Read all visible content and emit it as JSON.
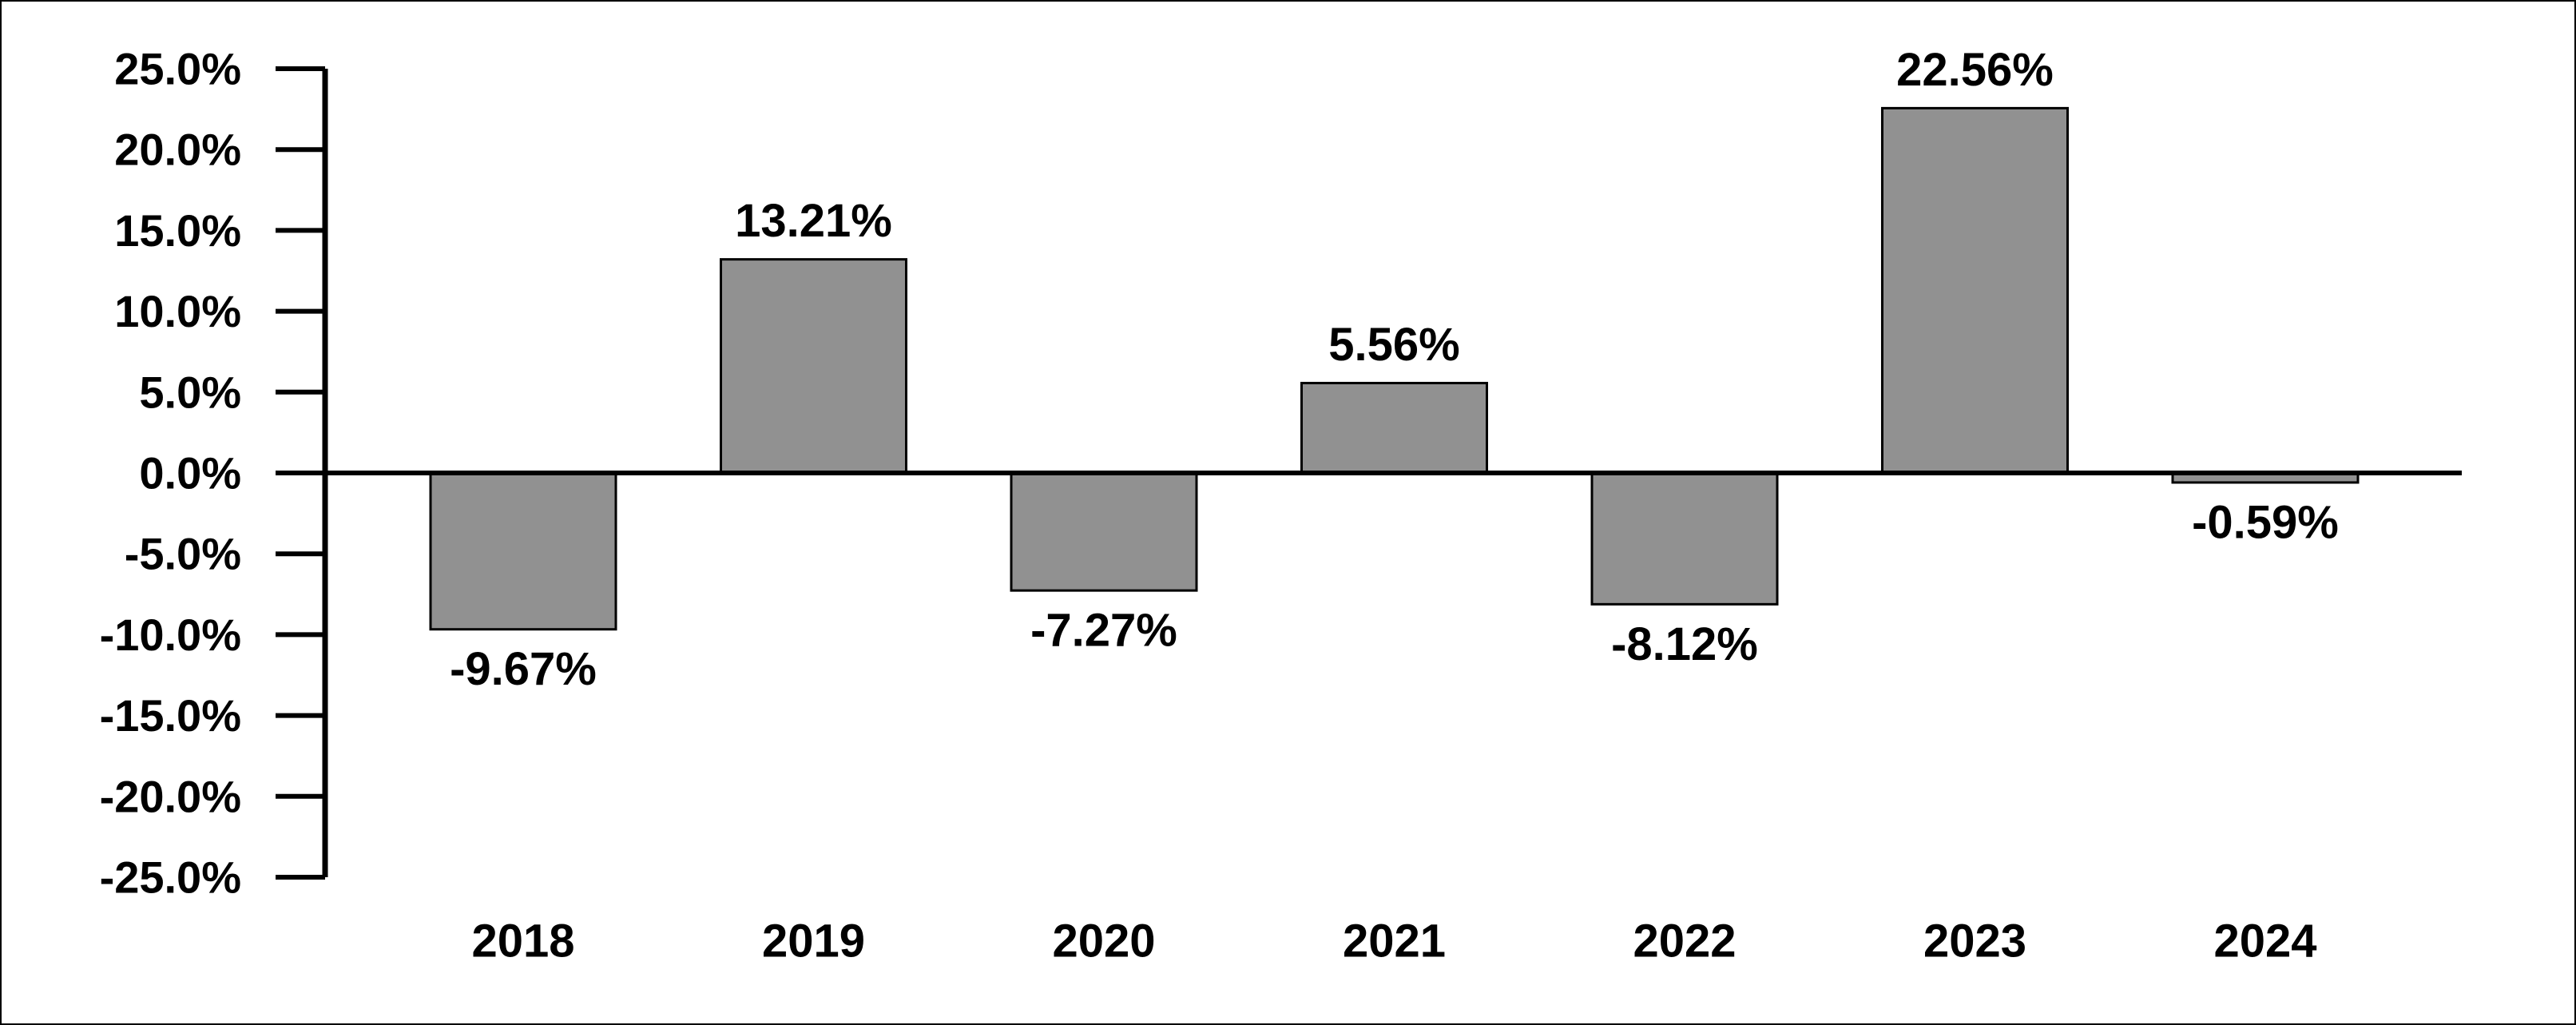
{
  "chart_data": {
    "type": "bar",
    "title": "",
    "xlabel": "",
    "ylabel": "",
    "categories": [
      "2018",
      "2019",
      "2020",
      "2021",
      "2022",
      "2023",
      "2024"
    ],
    "values": [
      -9.67,
      13.21,
      -7.27,
      5.56,
      -8.12,
      22.56,
      -0.59
    ],
    "data_labels": [
      "-9.67%",
      "13.21%",
      "-7.27%",
      "5.56%",
      "-8.12%",
      "22.56%",
      "-0.59%"
    ],
    "ylim": [
      -25,
      25
    ],
    "y_ticks": [
      25,
      20,
      15,
      10,
      5,
      0,
      -5,
      -10,
      -15,
      -20,
      -25
    ],
    "y_tick_labels": [
      "25.0%",
      "20.0%",
      "15.0%",
      "10.0%",
      "5.0%",
      "0.0%",
      "-5.0%",
      "-10.0%",
      "-15.0%",
      "-20.0%",
      "-25.0%"
    ],
    "grid": false,
    "legend": "none",
    "colors": {
      "bar_fill": "#919191",
      "bar_stroke": "#000000",
      "axis": "#000000",
      "text": "#000000"
    }
  }
}
